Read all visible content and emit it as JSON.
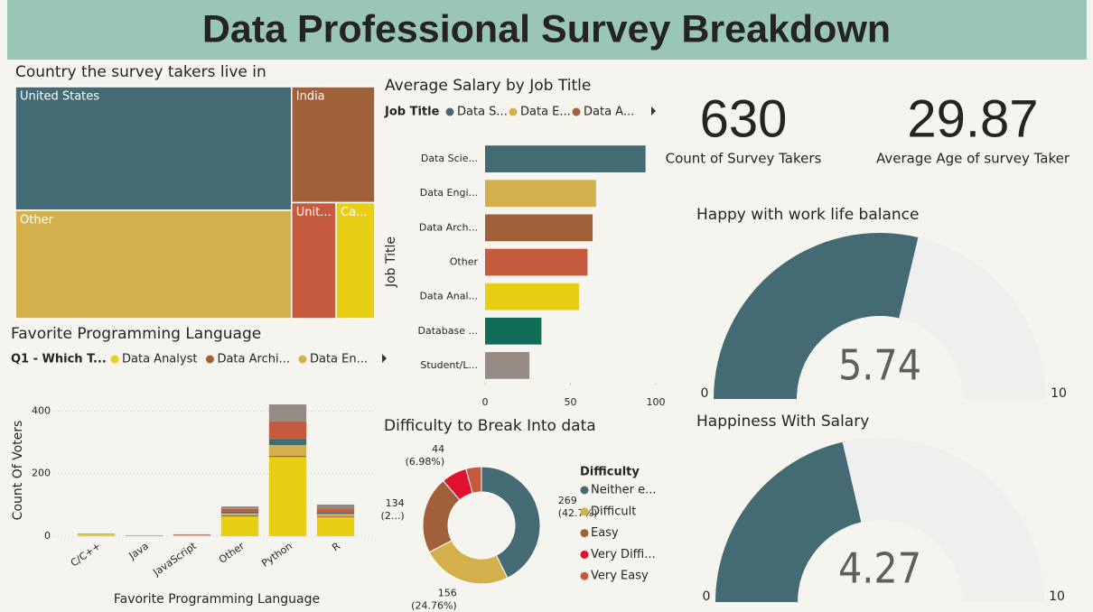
{
  "title": "Data Professional Survey Breakdown",
  "cards": [
    {
      "value": 630,
      "label": "Count of Survey Takers"
    },
    {
      "value": 29.87,
      "label": "Average Age of survey Taker"
    }
  ],
  "chart_data": [
    {
      "type": "treemap",
      "title": "Country the survey takers live in",
      "categories": [
        "United States",
        "Other",
        "India",
        "Unit...",
        "Ca..."
      ],
      "values": [
        258,
        226,
        73,
        39,
        34
      ],
      "colors": [
        "#446a74",
        "#d3b04b",
        "#a0603a",
        "#c55a3f",
        "#e8cf14"
      ]
    },
    {
      "type": "hbar",
      "title": "Average Salary by Job Title",
      "legend": {
        "title": "Job Title",
        "items": [
          {
            "name": "Data S...",
            "color": "#446a74"
          },
          {
            "name": "Data E...",
            "color": "#d3b04b"
          },
          {
            "name": "Data A...",
            "color": "#a0603a"
          }
        ]
      },
      "y_label": "Job Title",
      "categories": [
        "Data Scie...",
        "Data Engi...",
        "Data Arch...",
        "Other",
        "Data Anal...",
        "Database ...",
        "Student/L..."
      ],
      "values": [
        94,
        65,
        63,
        60,
        55,
        33,
        26
      ],
      "colors": [
        "#446a74",
        "#d3b04b",
        "#a0603a",
        "#c55a3f",
        "#e8cf14",
        "#0f6e55",
        "#968b83"
      ],
      "xlim": [
        0,
        100
      ],
      "xticks": [
        0,
        50,
        100
      ]
    },
    {
      "type": "stacked_bar",
      "title": "Favorite Programming Language",
      "legend_title": "Q1 - Which T...",
      "y_label": "Count Of Voters",
      "x_label": "Favorite Programming Language",
      "categories": [
        "C/C++",
        "Java",
        "JavaScript",
        "Other",
        "Python",
        "R"
      ],
      "series": [
        {
          "name": "Data Analyst",
          "color": "#e8cf14",
          "values": [
            5,
            1,
            2,
            63,
            253,
            60
          ]
        },
        {
          "name": "Data Archi...",
          "color": "#a0603a",
          "values": [
            0,
            0,
            0,
            4,
            4,
            3
          ]
        },
        {
          "name": "Data En...",
          "color": "#d3b04b",
          "values": [
            2,
            1,
            1,
            6,
            34,
            8
          ]
        },
        {
          "name": null,
          "color": "#446a74",
          "values": [
            0,
            0,
            0,
            6,
            20,
            6
          ]
        },
        {
          "name": null,
          "color": "#c55a3f",
          "values": [
            1,
            1,
            2,
            8,
            56,
            12
          ]
        },
        {
          "name": null,
          "color": "#968b83",
          "values": [
            0,
            0,
            1,
            8,
            54,
            12
          ]
        }
      ],
      "ylim": [
        0,
        450
      ],
      "yticks": [
        0,
        200,
        400
      ],
      "grid": true
    },
    {
      "type": "donut",
      "title": "Difficulty to Break Into data",
      "legend_title": "Difficulty",
      "categories": [
        "Neither e...",
        "Difficult",
        "Easy",
        "Very Diffi...",
        "Very Easy"
      ],
      "values": [
        269,
        156,
        134,
        44,
        27
      ],
      "value_labels": [
        [
          "269",
          "(42.7%)"
        ],
        [
          "156",
          "(24.76%)"
        ],
        [
          "134",
          "(2...)"
        ],
        [
          "44",
          "(6.98%)"
        ],
        null
      ],
      "colors": [
        "#446a74",
        "#d3b04b",
        "#a0603a",
        "#e0102f",
        "#c55a3f"
      ]
    },
    {
      "type": "gauge",
      "title": "Happy with work life balance",
      "value": 5.74,
      "min": 0,
      "max": 10,
      "color": "#446a74",
      "track_color": "#efefef"
    },
    {
      "type": "gauge",
      "title": "Happiness With Salary",
      "value": 4.27,
      "min": 0,
      "max": 10,
      "color": "#446a74",
      "track_color": "#efefef"
    }
  ]
}
